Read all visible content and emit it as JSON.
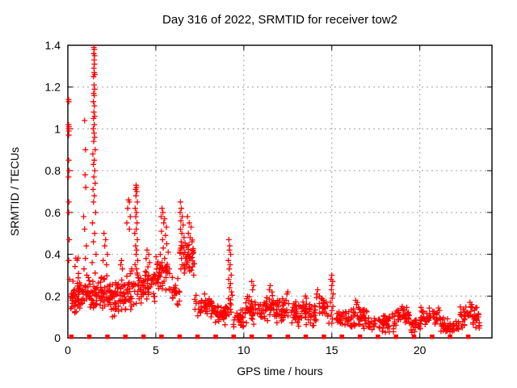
{
  "chart": {
    "title": "Day 316 of 2022, SRMTID for receiver tow2",
    "xlabel": "GPS time / hours",
    "ylabel": "SRMTID / TECUs"
  },
  "style": {
    "marker_color": "#ff0000",
    "grid_color": "#9e9e9e",
    "axis_color": "#000000",
    "background": "#ffffff"
  },
  "chart_data": {
    "type": "scatter",
    "title": "Day 316 of 2022, SRMTID for receiver tow2",
    "xlabel": "GPS time / hours",
    "ylabel": "SRMTID / TECUs",
    "xlim": [
      0,
      24.1
    ],
    "ylim": [
      0,
      1.4
    ],
    "xticks": {
      "values": [
        0,
        5,
        10,
        15,
        20
      ],
      "labels": [
        "0",
        "5",
        "10",
        "15",
        "20"
      ]
    },
    "yticks": {
      "values": [
        0,
        0.2,
        0.4,
        0.6,
        0.8,
        1,
        1.2,
        1.4
      ],
      "labels": [
        "0",
        "0.2",
        "0.4",
        "0.6",
        "0.8",
        "1",
        "1.2",
        "1.4"
      ]
    },
    "grid": true,
    "legend": "none",
    "seed": 316,
    "series": [
      {
        "name": "SRMTID",
        "marker": "plus",
        "color": "#ff0000",
        "points": [
          [
            0.04,
            1.14
          ],
          [
            0.05,
            1.13
          ],
          [
            0.04,
            1.02
          ],
          [
            0.06,
            1.01
          ],
          [
            0.04,
            1.0
          ],
          [
            0.05,
            1.0
          ],
          [
            0.06,
            0.99
          ],
          [
            0.05,
            0.97
          ],
          [
            0.05,
            0.85
          ],
          [
            0.07,
            0.8
          ],
          [
            0.04,
            0.77
          ],
          [
            0.06,
            0.65
          ],
          [
            0.05,
            0.6
          ],
          [
            0.08,
            0.47
          ],
          [
            0.05,
            0.37
          ],
          [
            0.1,
            0.28
          ],
          [
            0.95,
            1.04
          ],
          [
            1.0,
            0.9
          ],
          [
            0.98,
            0.78
          ],
          [
            1.02,
            0.72
          ],
          [
            0.9,
            0.58
          ],
          [
            0.95,
            0.52
          ],
          [
            1.05,
            0.44
          ],
          [
            1.0,
            0.38
          ],
          [
            0.92,
            0.33
          ],
          [
            1.08,
            0.3
          ],
          [
            1.48,
            1.39
          ],
          [
            1.5,
            1.38
          ],
          [
            1.47,
            1.36
          ],
          [
            1.52,
            1.35
          ],
          [
            1.49,
            1.33
          ],
          [
            1.51,
            1.31
          ],
          [
            1.48,
            1.29
          ],
          [
            1.5,
            1.27
          ],
          [
            1.53,
            1.26
          ],
          [
            1.46,
            1.25
          ],
          [
            1.49,
            1.21
          ],
          [
            1.52,
            1.19
          ],
          [
            1.47,
            1.17
          ],
          [
            1.5,
            1.16
          ],
          [
            1.45,
            1.13
          ],
          [
            1.51,
            1.11
          ],
          [
            1.48,
            1.08
          ],
          [
            1.53,
            1.06
          ],
          [
            1.46,
            1.05
          ],
          [
            1.5,
            1.02
          ],
          [
            1.44,
            1.0
          ],
          [
            1.49,
            0.98
          ],
          [
            1.52,
            0.96
          ],
          [
            1.47,
            0.94
          ],
          [
            1.55,
            0.9
          ],
          [
            1.42,
            0.88
          ],
          [
            1.5,
            0.85
          ],
          [
            1.45,
            0.83
          ],
          [
            1.53,
            0.8
          ],
          [
            1.48,
            0.77
          ],
          [
            1.55,
            0.74
          ],
          [
            1.43,
            0.71
          ],
          [
            1.5,
            0.68
          ],
          [
            1.46,
            0.65
          ],
          [
            1.58,
            0.6
          ],
          [
            1.4,
            0.55
          ],
          [
            1.52,
            0.5
          ],
          [
            1.45,
            0.46
          ],
          [
            1.6,
            0.4
          ],
          [
            1.38,
            0.36
          ],
          [
            1.55,
            0.31
          ],
          [
            1.42,
            0.27
          ],
          [
            2.05,
            0.5
          ],
          [
            2.15,
            0.47
          ],
          [
            2.1,
            0.44
          ],
          [
            2.25,
            0.4
          ],
          [
            2.0,
            0.37
          ],
          [
            2.2,
            0.35
          ],
          [
            3.05,
            0.37
          ],
          [
            3.0,
            0.35
          ],
          [
            3.1,
            0.33
          ],
          [
            3.45,
            0.66
          ],
          [
            3.5,
            0.65
          ],
          [
            3.4,
            0.62
          ],
          [
            3.55,
            0.58
          ],
          [
            3.35,
            0.55
          ],
          [
            3.5,
            0.52
          ],
          [
            3.88,
            0.73
          ],
          [
            3.9,
            0.72
          ],
          [
            3.85,
            0.71
          ],
          [
            3.92,
            0.7
          ],
          [
            3.87,
            0.68
          ],
          [
            3.95,
            0.65
          ],
          [
            3.83,
            0.62
          ],
          [
            3.9,
            0.6
          ],
          [
            3.86,
            0.58
          ],
          [
            3.93,
            0.55
          ],
          [
            3.89,
            0.52
          ],
          [
            3.8,
            0.5
          ],
          [
            3.95,
            0.47
          ],
          [
            3.85,
            0.44
          ],
          [
            3.91,
            0.42
          ],
          [
            3.88,
            0.4
          ],
          [
            3.97,
            0.37
          ],
          [
            3.82,
            0.35
          ],
          [
            3.9,
            0.33
          ],
          [
            3.94,
            0.31
          ],
          [
            4.5,
            0.42
          ],
          [
            4.6,
            0.4
          ],
          [
            4.45,
            0.38
          ],
          [
            4.65,
            0.36
          ],
          [
            4.55,
            0.34
          ],
          [
            5.35,
            0.62
          ],
          [
            5.4,
            0.6
          ],
          [
            5.3,
            0.58
          ],
          [
            5.5,
            0.57
          ],
          [
            5.45,
            0.55
          ],
          [
            5.6,
            0.53
          ],
          [
            5.32,
            0.51
          ],
          [
            5.55,
            0.49
          ],
          [
            5.38,
            0.47
          ],
          [
            5.62,
            0.45
          ],
          [
            5.42,
            0.43
          ],
          [
            5.7,
            0.41
          ],
          [
            5.25,
            0.4
          ],
          [
            5.5,
            0.38
          ],
          [
            5.35,
            0.36
          ],
          [
            5.65,
            0.34
          ],
          [
            5.45,
            0.32
          ],
          [
            5.2,
            0.3
          ],
          [
            6.4,
            0.65
          ],
          [
            6.45,
            0.62
          ],
          [
            6.38,
            0.6
          ],
          [
            6.5,
            0.58
          ],
          [
            6.42,
            0.56
          ],
          [
            6.55,
            0.54
          ],
          [
            6.4,
            0.52
          ],
          [
            6.48,
            0.5
          ],
          [
            6.6,
            0.48
          ],
          [
            6.44,
            0.46
          ],
          [
            6.52,
            0.44
          ],
          [
            6.38,
            0.42
          ],
          [
            6.58,
            0.4
          ],
          [
            6.46,
            0.38
          ],
          [
            6.5,
            0.35
          ],
          [
            6.42,
            0.33
          ],
          [
            6.62,
            0.31
          ],
          [
            6.8,
            0.58
          ],
          [
            6.9,
            0.55
          ],
          [
            7.0,
            0.53
          ],
          [
            6.85,
            0.5
          ],
          [
            6.95,
            0.48
          ],
          [
            7.05,
            0.46
          ],
          [
            6.75,
            0.44
          ],
          [
            7.1,
            0.42
          ],
          [
            6.88,
            0.4
          ],
          [
            6.98,
            0.38
          ],
          [
            6.8,
            0.36
          ],
          [
            7.08,
            0.34
          ],
          [
            6.92,
            0.32
          ],
          [
            7.15,
            0.3
          ],
          [
            9.15,
            0.47
          ],
          [
            9.2,
            0.44
          ],
          [
            9.18,
            0.42
          ],
          [
            9.25,
            0.4
          ],
          [
            9.12,
            0.37
          ],
          [
            9.22,
            0.35
          ],
          [
            9.17,
            0.33
          ],
          [
            9.28,
            0.3
          ],
          [
            9.14,
            0.28
          ],
          [
            9.24,
            0.26
          ],
          [
            9.19,
            0.24
          ],
          [
            9.3,
            0.22
          ],
          [
            10.45,
            0.27
          ],
          [
            10.55,
            0.25
          ],
          [
            10.5,
            0.23
          ],
          [
            11.5,
            0.25
          ],
          [
            11.45,
            0.23
          ],
          [
            11.6,
            0.22
          ],
          [
            12.5,
            0.22
          ],
          [
            12.45,
            0.21
          ],
          [
            13.5,
            0.2
          ],
          [
            13.55,
            0.19
          ],
          [
            14.2,
            0.23
          ],
          [
            14.15,
            0.21
          ],
          [
            14.3,
            0.2
          ],
          [
            15.0,
            0.3
          ],
          [
            14.95,
            0.28
          ],
          [
            15.05,
            0.27
          ],
          [
            15.0,
            0.25
          ],
          [
            14.98,
            0.23
          ],
          [
            15.08,
            0.21
          ],
          [
            15.02,
            0.19
          ],
          [
            14.92,
            0.17
          ],
          [
            15.06,
            0.15
          ],
          [
            15.0,
            0.13
          ],
          [
            14.96,
            0.11
          ],
          [
            15.04,
            0.09
          ],
          [
            15.0,
            0.07
          ],
          [
            16.35,
            0.18
          ],
          [
            16.45,
            0.17
          ],
          [
            16.4,
            0.16
          ],
          [
            19.0,
            0.15
          ],
          [
            18.95,
            0.14
          ],
          [
            19.05,
            0.13
          ],
          [
            22.85,
            0.17
          ],
          [
            22.95,
            0.16
          ],
          [
            22.9,
            0.15
          ]
        ],
        "clusters": [
          {
            "x": [
              0.15,
              0.9
            ],
            "y": [
              0.1,
              0.28
            ],
            "n": 55
          },
          {
            "x": [
              0.3,
              0.8
            ],
            "y": [
              0.28,
              0.42
            ],
            "n": 6
          },
          {
            "x": [
              0.9,
              1.35
            ],
            "y": [
              0.13,
              0.3
            ],
            "n": 25
          },
          {
            "x": [
              1.38,
              1.68
            ],
            "y": [
              0.13,
              0.28
            ],
            "n": 18
          },
          {
            "x": [
              1.7,
              2.5
            ],
            "y": [
              0.1,
              0.32
            ],
            "n": 50
          },
          {
            "x": [
              2.5,
              3.35
            ],
            "y": [
              0.08,
              0.3
            ],
            "n": 55
          },
          {
            "x": [
              3.35,
              3.75
            ],
            "y": [
              0.12,
              0.35
            ],
            "n": 25
          },
          {
            "x": [
              3.75,
              4.3
            ],
            "y": [
              0.14,
              0.33
            ],
            "n": 25
          },
          {
            "x": [
              4.3,
              4.95
            ],
            "y": [
              0.16,
              0.35
            ],
            "n": 35
          },
          {
            "x": [
              4.95,
              5.8
            ],
            "y": [
              0.2,
              0.4
            ],
            "n": 40
          },
          {
            "x": [
              5.8,
              6.35
            ],
            "y": [
              0.14,
              0.3
            ],
            "n": 22
          },
          {
            "x": [
              6.35,
              6.7
            ],
            "y": [
              0.3,
              0.5
            ],
            "n": 14
          },
          {
            "x": [
              6.7,
              7.2
            ],
            "y": [
              0.3,
              0.48
            ],
            "n": 22
          },
          {
            "x": [
              7.2,
              8.3
            ],
            "y": [
              0.08,
              0.22
            ],
            "n": 48
          },
          {
            "x": [
              8.3,
              9.1
            ],
            "y": [
              0.05,
              0.18
            ],
            "n": 38
          },
          {
            "x": [
              9.1,
              9.4
            ],
            "y": [
              0.1,
              0.22
            ],
            "n": 10
          },
          {
            "x": [
              9.4,
              10.1
            ],
            "y": [
              0.04,
              0.16
            ],
            "n": 32
          },
          {
            "x": [
              10.1,
              11.0
            ],
            "y": [
              0.06,
              0.21
            ],
            "n": 42
          },
          {
            "x": [
              11.0,
              12.0
            ],
            "y": [
              0.07,
              0.21
            ],
            "n": 48
          },
          {
            "x": [
              12.0,
              13.0
            ],
            "y": [
              0.06,
              0.2
            ],
            "n": 46
          },
          {
            "x": [
              13.0,
              14.0
            ],
            "y": [
              0.05,
              0.19
            ],
            "n": 42
          },
          {
            "x": [
              14.0,
              14.85
            ],
            "y": [
              0.06,
              0.21
            ],
            "n": 36
          },
          {
            "x": [
              15.25,
              16.1
            ],
            "y": [
              0.03,
              0.14
            ],
            "n": 36
          },
          {
            "x": [
              16.1,
              17.1
            ],
            "y": [
              0.04,
              0.16
            ],
            "n": 45
          },
          {
            "x": [
              17.1,
              18.6
            ],
            "y": [
              0.02,
              0.12
            ],
            "n": 55
          },
          {
            "x": [
              18.6,
              19.4
            ],
            "y": [
              0.05,
              0.15
            ],
            "n": 36
          },
          {
            "x": [
              19.4,
              20.05
            ],
            "y": [
              0.02,
              0.1
            ],
            "n": 26
          },
          {
            "x": [
              20.05,
              21.15
            ],
            "y": [
              0.05,
              0.15
            ],
            "n": 45
          },
          {
            "x": [
              21.15,
              22.3
            ],
            "y": [
              0.02,
              0.1
            ],
            "n": 40
          },
          {
            "x": [
              22.3,
              23.4
            ],
            "y": [
              0.04,
              0.16
            ],
            "n": 48
          }
        ]
      },
      {
        "name": "zero-line-markers",
        "marker": "square",
        "color": "#ff0000",
        "y0": 0,
        "x": [
          0.2,
          1.22,
          2.25,
          3.27,
          4.3,
          5.32,
          6.35,
          7.37,
          8.4,
          9.42,
          10.45,
          11.47,
          12.5,
          13.52,
          14.55,
          15.57,
          16.6,
          17.62,
          18.65,
          19.67,
          20.7,
          21.72,
          22.75
        ]
      }
    ]
  }
}
